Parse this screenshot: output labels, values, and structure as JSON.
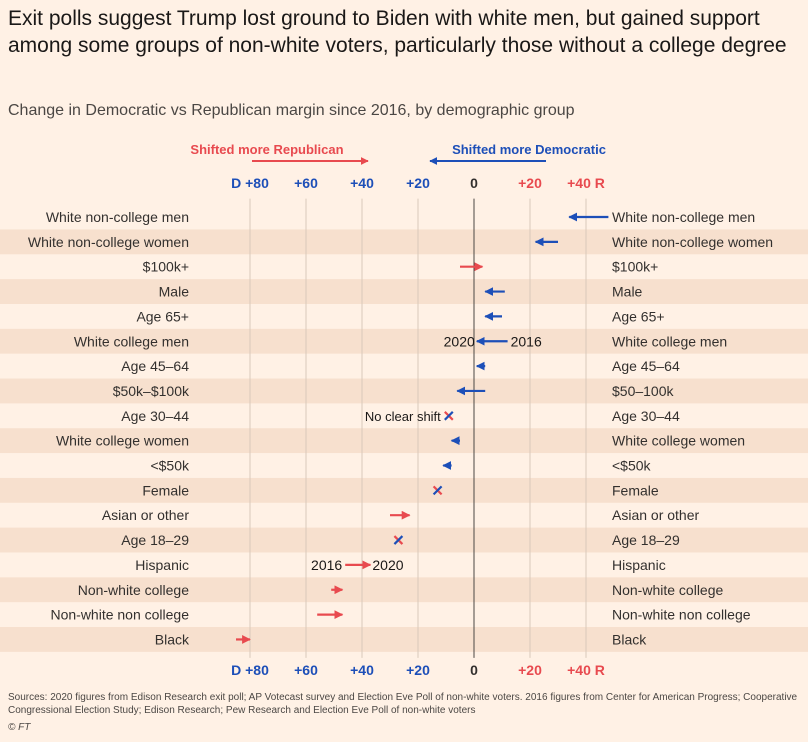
{
  "colors": {
    "background": "#fff1e5",
    "band": "#f7e0ce",
    "democratic": "#1d4fb8",
    "republican": "#e84a4f",
    "text": "#33302e"
  },
  "title": "Exit polls suggest Trump lost ground to Biden with white men, but gained support among some groups of non-white voters, particularly those without a college degree",
  "subtitle": "Change in Democratic vs Republican margin since 2016, by demographic group",
  "footer": {
    "source": "Sources: 2020 figures from Edison Research exit poll; AP Votecast survey and Election Eve Poll of non-white voters. 2016 figures from Center for American Progress; Cooperative Congressional Election Study; Edison Research; Pew Research and Election Eve Poll of non-white voters",
    "credit": "© FT"
  },
  "chart_data": {
    "type": "arrow",
    "xlim": [
      -84,
      50
    ],
    "ticks": [
      {
        "value": -80,
        "label": "D +80",
        "party": "dem"
      },
      {
        "value": -60,
        "label": "+60",
        "party": "dem"
      },
      {
        "value": -40,
        "label": "+40",
        "party": "dem"
      },
      {
        "value": -20,
        "label": "+20",
        "party": "dem"
      },
      {
        "value": 0,
        "label": "0",
        "party": "neutral"
      },
      {
        "value": 20,
        "label": "+20",
        "party": "rep"
      },
      {
        "value": 40,
        "label": "+40 R",
        "party": "rep"
      }
    ],
    "direction_labels": {
      "republican": "Shifted more Republican",
      "democratic": "Shifted more Democratic"
    },
    "annotations": {
      "no_shift": "No clear shift",
      "year_2016": "2016",
      "year_2020": "2020"
    },
    "rows": [
      {
        "label": "White non-college men",
        "right_label": "White non-college men",
        "from": 48,
        "to": 34
      },
      {
        "label": "White non-college women",
        "right_label": "White non-college women",
        "from": 30,
        "to": 22
      },
      {
        "label": "$100k+",
        "right_label": "$100k+",
        "from": -5,
        "to": 3
      },
      {
        "label": "Male",
        "right_label": "Male",
        "from": 11,
        "to": 4
      },
      {
        "label": "Age 65+",
        "right_label": "Age 65+",
        "from": 10,
        "to": 4
      },
      {
        "label": "White college men",
        "right_label": "White college men",
        "from": 12,
        "to": 1
      },
      {
        "label": "Age 45–64",
        "right_label": "Age 45–64",
        "from": 4,
        "to": 1
      },
      {
        "label": "$50k–$100k",
        "right_label": "$50–100k",
        "from": 4,
        "to": -6
      },
      {
        "label": "Age 30–44",
        "right_label": "Age 30–44",
        "from": -9,
        "to": -9
      },
      {
        "label": "White college women",
        "right_label": "White college women",
        "from": -5,
        "to": -8
      },
      {
        "label": "<$50k",
        "right_label": "<$50k",
        "from": -8,
        "to": -11
      },
      {
        "label": "Female",
        "right_label": "Female",
        "from": -13,
        "to": -13
      },
      {
        "label": "Asian or other",
        "right_label": "Asian or other",
        "from": -30,
        "to": -23
      },
      {
        "label": "Age 18–29",
        "right_label": "Age 18–29",
        "from": -27,
        "to": -27
      },
      {
        "label": "Hispanic",
        "right_label": "Hispanic",
        "from": -46,
        "to": -37
      },
      {
        "label": "Non-white college",
        "right_label": "Non-white college",
        "from": -51,
        "to": -47
      },
      {
        "label": "Non-white non college",
        "right_label": "Non-white non college",
        "from": -56,
        "to": -47
      },
      {
        "label": "Black",
        "right_label": "Black",
        "from": -85,
        "to": -80
      }
    ]
  }
}
